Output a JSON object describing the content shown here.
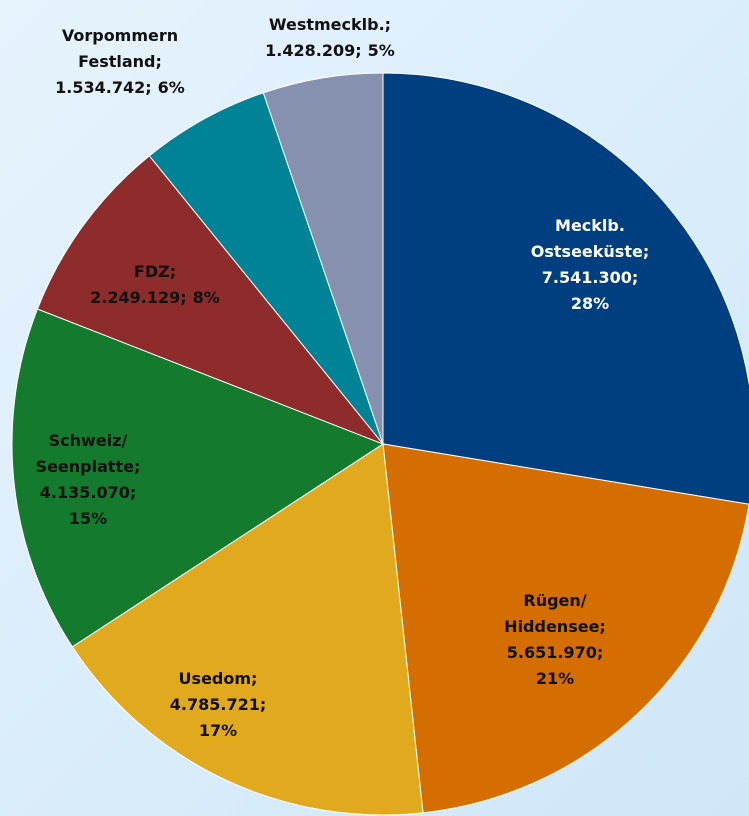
{
  "chart_data": {
    "type": "pie",
    "categories": [
      "Mecklb. Ostseeküste;",
      "Rügen/ Hiddensee;",
      "Usedom;",
      "Schweiz/ Seenplatte;",
      "FDZ;",
      "Vorpommern Festland;",
      "Westmecklb.;"
    ],
    "values": [
      7541300,
      5651970,
      4785721,
      4135070,
      2249129,
      1534742,
      1428209
    ],
    "value_labels": [
      "7.541.300;",
      "5.651.970;",
      "4.785.721;",
      "4.135.070;",
      "2.249.129;",
      "1.534.742;",
      "1.428.209;"
    ],
    "percentages": [
      28,
      21,
      17,
      15,
      8,
      6,
      5
    ],
    "percentage_labels": [
      "28%",
      "21%",
      "17%",
      "15%",
      "8%",
      "6%",
      "5%"
    ],
    "colors": [
      "#003f7f",
      "#d46e00",
      "#e0a91e",
      "#137a2e",
      "#8e2b2b",
      "#008396",
      "#8591ae"
    ]
  }
}
